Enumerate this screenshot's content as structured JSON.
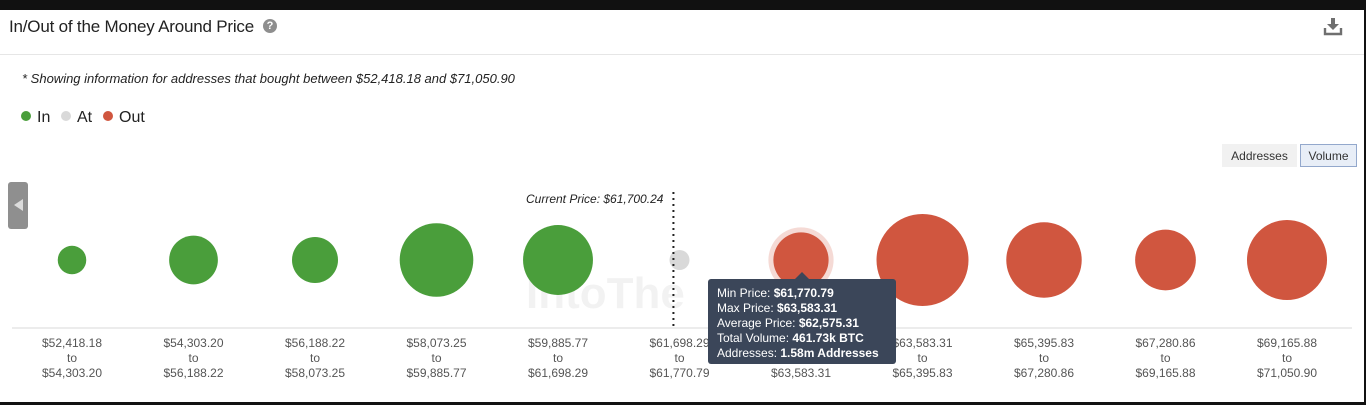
{
  "header": {
    "title": "In/Out of the Money Around Price",
    "help_symbol": "?"
  },
  "note": "* Showing information for addresses that bought between $52,418.18 and $71,050.90",
  "legend": [
    {
      "label": "In",
      "color": "#4a9e3b"
    },
    {
      "label": "At",
      "color": "#d9d9d9"
    },
    {
      "label": "Out",
      "color": "#d0563f"
    }
  ],
  "toggles": {
    "addresses": "Addresses",
    "volume": "Volume",
    "selected": "Volume"
  },
  "watermark": "IntoThe",
  "chart_data": {
    "type": "scatter",
    "current_price_label": "Current Price: $61,700.24",
    "current_price_after_index": 4,
    "separator_word": "to",
    "categories": [
      {
        "from": "$52,418.18",
        "to": "$54,303.20",
        "status": "In",
        "relative_size": 0.31
      },
      {
        "from": "$54,303.20",
        "to": "$56,188.22",
        "status": "In",
        "relative_size": 0.53
      },
      {
        "from": "$56,188.22",
        "to": "$58,073.25",
        "status": "In",
        "relative_size": 0.5
      },
      {
        "from": "$58,073.25",
        "to": "$59,885.77",
        "status": "In",
        "relative_size": 0.8
      },
      {
        "from": "$59,885.77",
        "to": "$61,698.29",
        "status": "In",
        "relative_size": 0.76
      },
      {
        "from": "$61,698.29",
        "to": "$61,770.79",
        "status": "At",
        "relative_size": 0.05
      },
      {
        "from": "$61,770.79",
        "to": "$63,583.31",
        "status": "Out",
        "relative_size": 0.6,
        "hovered": true
      },
      {
        "from": "$63,583.31",
        "to": "$65,395.83",
        "status": "Out",
        "relative_size": 1.0
      },
      {
        "from": "$65,395.83",
        "to": "$67,280.86",
        "status": "Out",
        "relative_size": 0.82
      },
      {
        "from": "$67,280.86",
        "to": "$69,165.88",
        "status": "Out",
        "relative_size": 0.66
      },
      {
        "from": "$69,165.88",
        "to": "$71,050.90",
        "status": "Out",
        "relative_size": 0.87
      }
    ],
    "tooltip": [
      {
        "label": "Min Price: ",
        "value": "$61,770.79"
      },
      {
        "label": "Max Price: ",
        "value": "$63,583.31"
      },
      {
        "label": "Average Price: ",
        "value": "$62,575.31"
      },
      {
        "label": "Total Volume: ",
        "value": "461.73k BTC"
      },
      {
        "label": "Addresses: ",
        "value": "1.58m Addresses"
      }
    ]
  }
}
